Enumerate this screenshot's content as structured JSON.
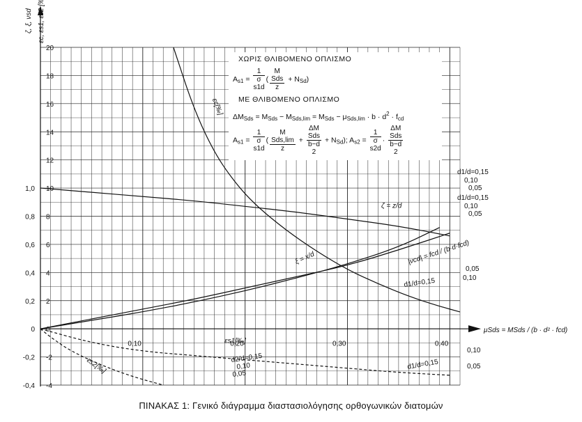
{
  "chart_data": {
    "type": "line",
    "caption": "ΠΙΝΑΚΑΣ   1: Γενικό διάγραμμα διαστασιολόγησης ορθογωνικών διατομών",
    "x_axis": {
      "label": "μSds = MSds / (b · d² · fcd)",
      "ticks": [
        0.1,
        0.2,
        0.3,
        0.4
      ],
      "tick_labels": [
        "0,10",
        "0,20",
        "0,30",
        "0,40"
      ],
      "range": [
        0,
        0.41
      ]
    },
    "y_axis_left": {
      "label": "ζ, ξ, νsd",
      "range": [
        -0.4,
        1.0
      ],
      "ticks": [
        -0.4,
        -0.2,
        0,
        0.2,
        0.4,
        0.6,
        0.8,
        1.0
      ],
      "tick_labels": [
        "-0,4",
        "-0,2",
        "0",
        "0,2",
        "0,4",
        "0,6",
        "0,8",
        "1,0"
      ]
    },
    "y_axis_right": {
      "label": "εc, εs1, εs2 [‰]",
      "range": [
        -4,
        20
      ],
      "ticks": [
        -4,
        -2,
        0,
        2,
        4,
        6,
        8,
        10,
        12,
        14,
        16,
        18,
        20
      ],
      "tick_labels": [
        "-4",
        "-2",
        "0",
        "2",
        "4",
        "6",
        "8",
        "10",
        "12",
        "14",
        "16",
        "18",
        "20"
      ]
    },
    "grid": true,
    "series": [
      {
        "name": "εc[‰]",
        "axis": "right",
        "x": [
          0.13,
          0.15,
          0.17,
          0.19,
          0.21,
          0.24,
          0.27,
          0.3,
          0.33,
          0.36,
          0.39,
          0.41
        ],
        "y": [
          20,
          15.6,
          12.5,
          10.4,
          8.8,
          7.0,
          5.5,
          4.2,
          3.2,
          2.3,
          1.6,
          1.2
        ]
      },
      {
        "name": "ζ = z/d",
        "axis": "left",
        "x": [
          0.0,
          0.05,
          0.1,
          0.15,
          0.2,
          0.25,
          0.3,
          0.35,
          0.4
        ],
        "y": [
          1.0,
          0.97,
          0.94,
          0.91,
          0.87,
          0.83,
          0.78,
          0.73,
          0.66
        ]
      },
      {
        "name": "ξ = x/d",
        "axis": "left",
        "x": [
          0.0,
          0.05,
          0.1,
          0.15,
          0.2,
          0.25,
          0.3,
          0.35,
          0.4
        ],
        "y": [
          0.0,
          0.07,
          0.14,
          0.21,
          0.29,
          0.37,
          0.45,
          0.56,
          0.68
        ]
      },
      {
        "name": "|νcd| = fcd / (b·d·fcd)",
        "axis": "left",
        "x": [
          0.0,
          0.05,
          0.1,
          0.15,
          0.2,
          0.25,
          0.3,
          0.35,
          0.39
        ],
        "y": [
          0.0,
          0.06,
          0.12,
          0.19,
          0.27,
          0.36,
          0.46,
          0.58,
          0.72
        ]
      },
      {
        "name": "εs1[‰]",
        "axis": "right",
        "x": [
          0.0,
          0.05,
          0.1,
          0.15,
          0.2,
          0.25,
          0.3,
          0.35,
          0.4
        ],
        "y": [
          0.0,
          -1.0,
          -1.6,
          -1.9,
          -2.2,
          -2.5,
          -2.8,
          -3.1,
          -3.3
        ]
      },
      {
        "name": "εs2[‰]",
        "axis": "right",
        "x": [
          0.0,
          0.01,
          0.03,
          0.06,
          0.09,
          0.12
        ],
        "y": [
          0.0,
          -0.6,
          -1.6,
          -2.6,
          -3.4,
          -4.0
        ]
      }
    ],
    "curve_labels": {
      "ec": "εc[‰]",
      "zeta": "ζ = z/d",
      "xi": "ξ = x/d",
      "nu": "|νcd| = fcd / (b·d·fcd)",
      "es1": "εs1[‰]",
      "es2": "εs2[‰]"
    },
    "annotations": {
      "d1_015_top": "d1/d=0,15",
      "d1_010_top": "0,10",
      "d1_005_top": "0,05",
      "d1_015_mid": "d1/d=0,15",
      "d1_010_mid": "0,10",
      "d1_005_mid": "0,05",
      "d1_015_low": "d1/d=0,15",
      "d1_010_low": "0,10",
      "d1_005_low": "0,05",
      "d1_015_bot": "d1/d=0,15",
      "d1_010_bot": "0,10",
      "d1_005_bot": "0,05",
      "d2_015": "d2/d=0,15",
      "d2_010": "0,10",
      "d2_005": "0,05"
    },
    "formulas": {
      "no_comp_title": "ΧΩΡΙΣ ΘΛΙΒΟΜΕΝΟ ΟΠΛΙΣΜΟ",
      "with_comp_title": "ΜΕ ΘΛΙΒΟΜΕΝΟ ΟΠΛΙΣΜΟ"
    }
  }
}
